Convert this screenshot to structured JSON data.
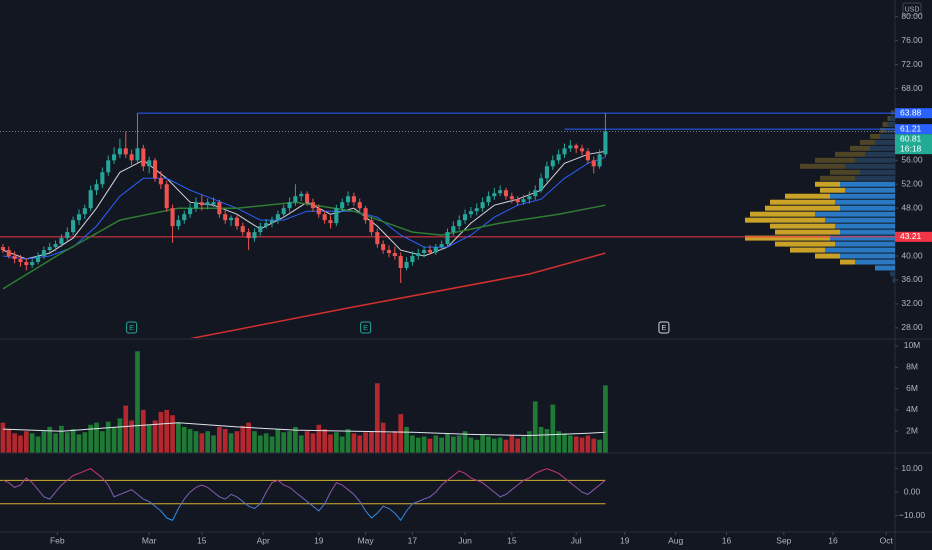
{
  "chart_data": {
    "type": "candlestick",
    "currency": "USD",
    "xlim": [
      -0.5,
      152.5
    ],
    "xticks": [
      {
        "value": 9.3,
        "label": "Feb"
      },
      {
        "value": 25,
        "label": "Mar"
      },
      {
        "value": 34,
        "label": "15"
      },
      {
        "value": 44.5,
        "label": "Apr"
      },
      {
        "value": 54,
        "label": "19"
      },
      {
        "value": 62,
        "label": "May"
      },
      {
        "value": 70,
        "label": "17"
      },
      {
        "value": 79,
        "label": "Jun"
      },
      {
        "value": 87,
        "label": "15"
      },
      {
        "value": 98,
        "label": "Jul"
      },
      {
        "value": 106.3,
        "label": "19"
      },
      {
        "value": 115,
        "label": "Aug"
      },
      {
        "value": 123.7,
        "label": "16"
      },
      {
        "value": 133.5,
        "label": "Sep"
      },
      {
        "value": 141.9,
        "label": "16"
      },
      {
        "value": 151,
        "label": "Oct"
      }
    ],
    "up_color": "#26a69a",
    "down_color": "#ef5350",
    "ylim": [
      26.3,
      82.8
    ],
    "yticks": [
      {
        "value": 80,
        "label": "80.00"
      },
      {
        "value": 76,
        "label": "76.00"
      },
      {
        "value": 72,
        "label": "72.00"
      },
      {
        "value": 68,
        "label": "68.00"
      },
      {
        "value": 56,
        "label": "56.00"
      },
      {
        "value": 52,
        "label": "52.00"
      },
      {
        "value": 48,
        "label": "48.00"
      },
      {
        "value": 40,
        "label": "40.00"
      },
      {
        "value": 36,
        "label": "36.00"
      },
      {
        "value": 32,
        "label": "32.00"
      },
      {
        "value": 28,
        "label": "28.00"
      }
    ],
    "grid": false,
    "candles": [
      [
        41.5,
        42,
        40.5,
        41
      ],
      [
        41,
        41.6,
        39.6,
        40
      ],
      [
        40,
        40.8,
        38.8,
        39.5
      ],
      [
        39.5,
        40.2,
        38.2,
        39
      ],
      [
        39,
        39.6,
        37.6,
        38.5
      ],
      [
        38.5,
        39.6,
        38,
        39
      ],
      [
        39,
        40.6,
        38.6,
        40
      ],
      [
        40,
        41.6,
        39.5,
        41
      ],
      [
        41,
        42.2,
        40.6,
        41.5
      ],
      [
        41.5,
        42.6,
        40.8,
        42
      ],
      [
        42,
        43.6,
        41.5,
        43
      ],
      [
        43,
        44.8,
        42.4,
        44
      ],
      [
        44,
        46.6,
        43.5,
        46
      ],
      [
        46,
        47.8,
        45.2,
        47
      ],
      [
        47,
        48.6,
        46.2,
        48
      ],
      [
        48,
        51.8,
        47.5,
        51
      ],
      [
        51,
        52.8,
        50.2,
        52
      ],
      [
        52,
        54.8,
        51.4,
        54
      ],
      [
        54,
        56.8,
        53.4,
        56
      ],
      [
        56,
        58.2,
        55.4,
        57
      ],
      [
        57,
        59.6,
        56.4,
        58
      ],
      [
        58,
        60.8,
        56.4,
        57
      ],
      [
        57,
        57.8,
        55.2,
        56
      ],
      [
        56,
        63.88,
        55.5,
        58
      ],
      [
        58,
        58.6,
        54.2,
        55
      ],
      [
        55,
        56.6,
        53.8,
        56
      ],
      [
        56,
        56.4,
        52.4,
        53
      ],
      [
        53,
        54.2,
        51.2,
        52
      ],
      [
        52,
        52.6,
        47.4,
        48
      ],
      [
        48,
        48.6,
        42.2,
        45
      ],
      [
        45,
        46.8,
        44.4,
        46
      ],
      [
        46,
        47.6,
        45.4,
        47
      ],
      [
        47,
        48.8,
        46.4,
        48
      ],
      [
        48,
        49.8,
        47.4,
        49
      ],
      [
        49,
        50.2,
        47.6,
        48.5
      ],
      [
        48.5,
        49.6,
        47.8,
        49
      ],
      [
        48.6,
        49.8,
        48.2,
        49
      ],
      [
        49,
        49.4,
        46.4,
        47
      ],
      [
        47,
        47.6,
        45.4,
        46
      ],
      [
        46,
        46.8,
        45,
        46.4
      ],
      [
        46.4,
        46.8,
        44.4,
        45
      ],
      [
        45,
        45.6,
        43.4,
        44
      ],
      [
        44,
        44.6,
        41,
        43
      ],
      [
        43,
        44.6,
        42.4,
        44
      ],
      [
        44,
        45.6,
        43.4,
        45
      ],
      [
        45,
        46.2,
        44.6,
        45.5
      ],
      [
        45.5,
        46.6,
        44.8,
        46
      ],
      [
        46,
        47.6,
        45.4,
        47
      ],
      [
        47,
        48.6,
        46.4,
        48
      ],
      [
        48,
        49.8,
        47.4,
        49
      ],
      [
        49,
        52,
        48.4,
        50
      ],
      [
        50,
        50.8,
        49.2,
        50.4
      ],
      [
        50.4,
        50.8,
        48.4,
        49
      ],
      [
        49,
        49.6,
        47.4,
        48
      ],
      [
        48,
        48.6,
        46.4,
        47
      ],
      [
        47,
        47.6,
        45.4,
        46
      ],
      [
        46,
        46.8,
        44.6,
        45.5
      ],
      [
        45.5,
        48.6,
        45,
        48
      ],
      [
        48,
        49.6,
        47.4,
        49
      ],
      [
        49,
        50.8,
        48.4,
        50
      ],
      [
        50,
        50.6,
        48.4,
        49
      ],
      [
        49,
        49.6,
        47.4,
        48
      ],
      [
        48,
        48.4,
        45.4,
        46
      ],
      [
        46,
        46.6,
        43.4,
        44
      ],
      [
        44,
        44.6,
        41.4,
        42
      ],
      [
        42,
        42.6,
        40.4,
        41
      ],
      [
        41,
        41.8,
        39.8,
        40.5
      ],
      [
        40.5,
        41.6,
        39.4,
        40
      ],
      [
        40,
        40.6,
        35.5,
        38
      ],
      [
        38,
        39.8,
        37.6,
        39
      ],
      [
        39,
        40.8,
        38.4,
        40
      ],
      [
        40,
        41.2,
        39.4,
        40.5
      ],
      [
        40.5,
        41.6,
        39.8,
        41
      ],
      [
        41,
        41.8,
        40.2,
        40.6
      ],
      [
        40.6,
        42,
        40.2,
        41.5
      ],
      [
        41.5,
        42.6,
        41,
        42
      ],
      [
        42,
        44.6,
        41.6,
        44
      ],
      [
        44,
        45.8,
        43.4,
        45
      ],
      [
        45,
        46.8,
        44.4,
        46
      ],
      [
        46,
        47.8,
        45.4,
        47
      ],
      [
        47,
        48.2,
        46.4,
        47.5
      ],
      [
        47.5,
        48.8,
        46.8,
        48
      ],
      [
        48,
        49.8,
        47.4,
        49
      ],
      [
        49,
        50.8,
        48.4,
        50
      ],
      [
        50,
        51.4,
        49.4,
        50.5
      ],
      [
        50.5,
        51.8,
        50,
        51
      ],
      [
        51,
        51.4,
        49.4,
        50
      ],
      [
        50,
        50.6,
        48.8,
        49.5
      ],
      [
        49.5,
        50,
        48.4,
        49
      ],
      [
        49,
        50.2,
        48.6,
        49.5
      ],
      [
        49.5,
        50.8,
        48.8,
        50
      ],
      [
        50,
        51.8,
        49.4,
        51
      ],
      [
        51,
        53.8,
        50.6,
        53
      ],
      [
        53,
        55.8,
        52.4,
        55
      ],
      [
        55,
        56.8,
        54.4,
        56
      ],
      [
        56,
        57.8,
        55.4,
        57
      ],
      [
        57,
        58.8,
        56.4,
        58
      ],
      [
        58,
        59.4,
        57.4,
        58.5
      ],
      [
        58.5,
        58.8,
        57.2,
        58
      ],
      [
        58,
        58.6,
        56.8,
        57.5
      ],
      [
        57.5,
        58,
        55.4,
        56
      ],
      [
        56,
        56.6,
        53.8,
        55
      ],
      [
        55,
        57.8,
        54.6,
        57
      ],
      [
        57,
        63.88,
        56.6,
        60.81
      ]
    ],
    "moving_averages": [
      {
        "color": "#d1d4dc",
        "x": [
          0,
          4,
          8,
          12,
          16,
          20,
          24,
          28,
          32,
          36,
          40,
          44,
          48,
          52,
          56,
          60,
          64,
          68,
          72,
          76,
          80,
          84,
          88,
          92,
          96,
          100,
          103
        ],
        "values": [
          41,
          39.5,
          40.5,
          43,
          48,
          54,
          56,
          53,
          49,
          48.5,
          47,
          44.5,
          46.5,
          49,
          47,
          48,
          45,
          41,
          40,
          41.5,
          45.5,
          48.5,
          49.5,
          51,
          55.5,
          57,
          57.5
        ]
      },
      {
        "color": "#2962ff",
        "x": [
          0,
          4,
          8,
          12,
          16,
          20,
          24,
          28,
          32,
          36,
          40,
          44,
          48,
          52,
          56,
          60,
          64,
          68,
          72,
          76,
          80,
          84,
          88,
          92,
          96,
          100,
          103
        ],
        "values": [
          40,
          39.5,
          40,
          41.5,
          45,
          50,
          53,
          53,
          51,
          49.5,
          48,
          46,
          46,
          47.5,
          47.5,
          47.5,
          46.5,
          43.5,
          41.5,
          41.5,
          43.5,
          46.5,
          48.5,
          49.5,
          53,
          55.5,
          56.5
        ]
      },
      {
        "color": "#2e7d32",
        "x": [
          0,
          10,
          20,
          30,
          40,
          50,
          60,
          70,
          75,
          85,
          95,
          103
        ],
        "values": [
          34.5,
          40.5,
          46,
          48,
          48,
          49,
          47.5,
          44,
          43.5,
          45.5,
          47,
          48.5
        ]
      },
      {
        "color": "#d32f2f",
        "x": [
          31,
          60,
          90,
          103
        ],
        "values": [
          26,
          31.5,
          37,
          40.5
        ]
      }
    ],
    "levels": [
      {
        "value": 63.88,
        "from": 23,
        "color": "#2962ff",
        "style": "solid"
      },
      {
        "value": 61.21,
        "from": 96,
        "color": "#2962ff",
        "style": "solid"
      },
      {
        "value": 60.81,
        "from": 0,
        "color": "#787b86",
        "style": "dotted"
      },
      {
        "value": 43.21,
        "from": 0,
        "color": "#f23645",
        "style": "solid"
      }
    ],
    "price_labels": [
      {
        "value": 63.88,
        "color": "#2962ff"
      },
      {
        "value": 61.21,
        "color": "#2962ff"
      },
      {
        "value": 60.81,
        "color": "#22ab94",
        "countdown": "16:18"
      },
      {
        "value": 43.21,
        "color": "#f23645"
      }
    ],
    "volume_profile": {
      "value_area": [
        38,
        52.5
      ],
      "up_color": "#2a79c2",
      "down_color": "#c9a227",
      "dim_up_color": "#233a54",
      "dim_down_color": "#4e4426",
      "rows": [
        [
          64,
          0.5,
          0.3
        ],
        [
          63,
          1,
          0.5
        ],
        [
          62,
          1.5,
          1
        ],
        [
          61,
          2,
          1
        ],
        [
          60,
          3,
          2
        ],
        [
          59,
          4,
          3
        ],
        [
          58,
          5,
          4
        ],
        [
          57,
          6,
          6
        ],
        [
          56,
          8,
          8
        ],
        [
          55,
          10,
          9
        ],
        [
          54,
          7,
          6
        ],
        [
          53,
          8,
          7
        ],
        [
          52,
          11,
          5
        ],
        [
          51,
          10,
          5
        ],
        [
          50,
          13,
          9
        ],
        [
          49,
          12,
          13
        ],
        [
          48,
          11,
          15
        ],
        [
          47,
          16,
          13
        ],
        [
          46,
          14,
          16
        ],
        [
          45,
          12,
          13
        ],
        [
          44,
          11,
          13
        ],
        [
          43,
          13,
          17
        ],
        [
          42,
          12,
          12
        ],
        [
          41,
          14,
          7
        ],
        [
          40,
          11,
          5
        ],
        [
          39,
          8,
          3
        ],
        [
          38,
          4,
          0
        ],
        [
          37,
          1,
          0
        ],
        [
          36,
          0.5,
          0
        ]
      ]
    },
    "earnings": [
      {
        "x": 22,
        "label": "E",
        "color": "#26a69a"
      },
      {
        "x": 62,
        "label": "E",
        "color": "#26a69a"
      },
      {
        "x": 113,
        "label": "E",
        "color": "#d1d4dc"
      }
    ],
    "volume": {
      "up_color": "#1f7a36",
      "down_color": "#b2282e",
      "ylim": [
        0,
        10.56
      ],
      "yticks": [
        {
          "value": 10,
          "label": "10M"
        },
        {
          "value": 8,
          "label": "8M"
        },
        {
          "value": 6,
          "label": "6M"
        },
        {
          "value": 4,
          "label": "4M"
        },
        {
          "value": 2,
          "label": "2M"
        }
      ],
      "values": [
        2.8,
        2.2,
        1.8,
        1.6,
        2.0,
        1.8,
        1.5,
        2.0,
        2.4,
        1.8,
        2.5,
        1.9,
        2.2,
        1.7,
        1.9,
        2.6,
        2.8,
        2.0,
        2.9,
        2.4,
        3.2,
        4.4,
        3.0,
        9.5,
        4.0,
        2.6,
        3.0,
        3.8,
        4.0,
        3.5,
        2.8,
        2.4,
        2.2,
        2.0,
        1.8,
        2.0,
        1.6,
        2.4,
        2.2,
        1.8,
        2.0,
        2.5,
        2.8,
        2.0,
        1.6,
        1.8,
        1.5,
        2.2,
        1.9,
        2.0,
        2.4,
        1.6,
        2.0,
        1.8,
        2.6,
        2.2,
        1.7,
        1.9,
        1.5,
        2.2,
        1.8,
        1.6,
        1.9,
        2.0,
        6.5,
        2.8,
        1.8,
        2.0,
        3.6,
        2.4,
        1.6,
        1.4,
        1.5,
        1.3,
        1.6,
        1.4,
        1.8,
        1.5,
        1.6,
        2.0,
        1.4,
        1.2,
        1.7,
        1.5,
        1.3,
        1.4,
        1.2,
        1.6,
        1.3,
        1.5,
        2.0,
        4.8,
        2.4,
        2.2,
        4.5,
        2.0,
        1.8,
        1.6,
        1.5,
        1.4,
        1.6,
        1.3,
        1.2,
        6.3
      ],
      "ma": {
        "color": "#e0e3eb",
        "x": [
          0,
          10,
          20,
          30,
          40,
          50,
          60,
          70,
          80,
          90,
          100,
          103
        ],
        "values": [
          2.2,
          2.0,
          2.4,
          2.8,
          2.4,
          2.1,
          2.0,
          1.9,
          1.7,
          1.6,
          1.8,
          1.9
        ]
      }
    },
    "oscillator": {
      "ylim": [
        -17,
        16.2
      ],
      "colors": [
        "#e91e63",
        "#2196f3"
      ],
      "band_color": "#d4b12f",
      "bands": [
        5,
        -5
      ],
      "yticks": [
        {
          "value": 10,
          "label": "10.00"
        },
        {
          "value": 0,
          "label": "0.00"
        },
        {
          "value": -10,
          "label": "−10.00"
        }
      ],
      "values": [
        5,
        4,
        2,
        3,
        6,
        4,
        1,
        -2,
        -3,
        0,
        3,
        5,
        7,
        8,
        9,
        10,
        8,
        6,
        3,
        -2,
        -1,
        0,
        1,
        -1,
        -3,
        -4,
        -6,
        -8,
        -11,
        -12,
        -7,
        -3,
        0,
        2,
        3,
        2,
        0,
        -2,
        -3,
        -1,
        -2,
        -4,
        -6,
        -7,
        -5,
        0,
        4,
        5,
        3,
        2,
        0,
        -2,
        -4,
        -6,
        -8,
        -5,
        0,
        4,
        3,
        1,
        -1,
        -4,
        -8,
        -11,
        -9,
        -6,
        -7,
        -9,
        -12,
        -8,
        -5,
        -4,
        -3,
        -2,
        0,
        3,
        5,
        7,
        9,
        8,
        6,
        5,
        4,
        2,
        0,
        -2,
        -1,
        1,
        3,
        5,
        6,
        8,
        9,
        10,
        9,
        8,
        6,
        4,
        2,
        0,
        -1,
        1,
        3,
        5
      ]
    }
  }
}
